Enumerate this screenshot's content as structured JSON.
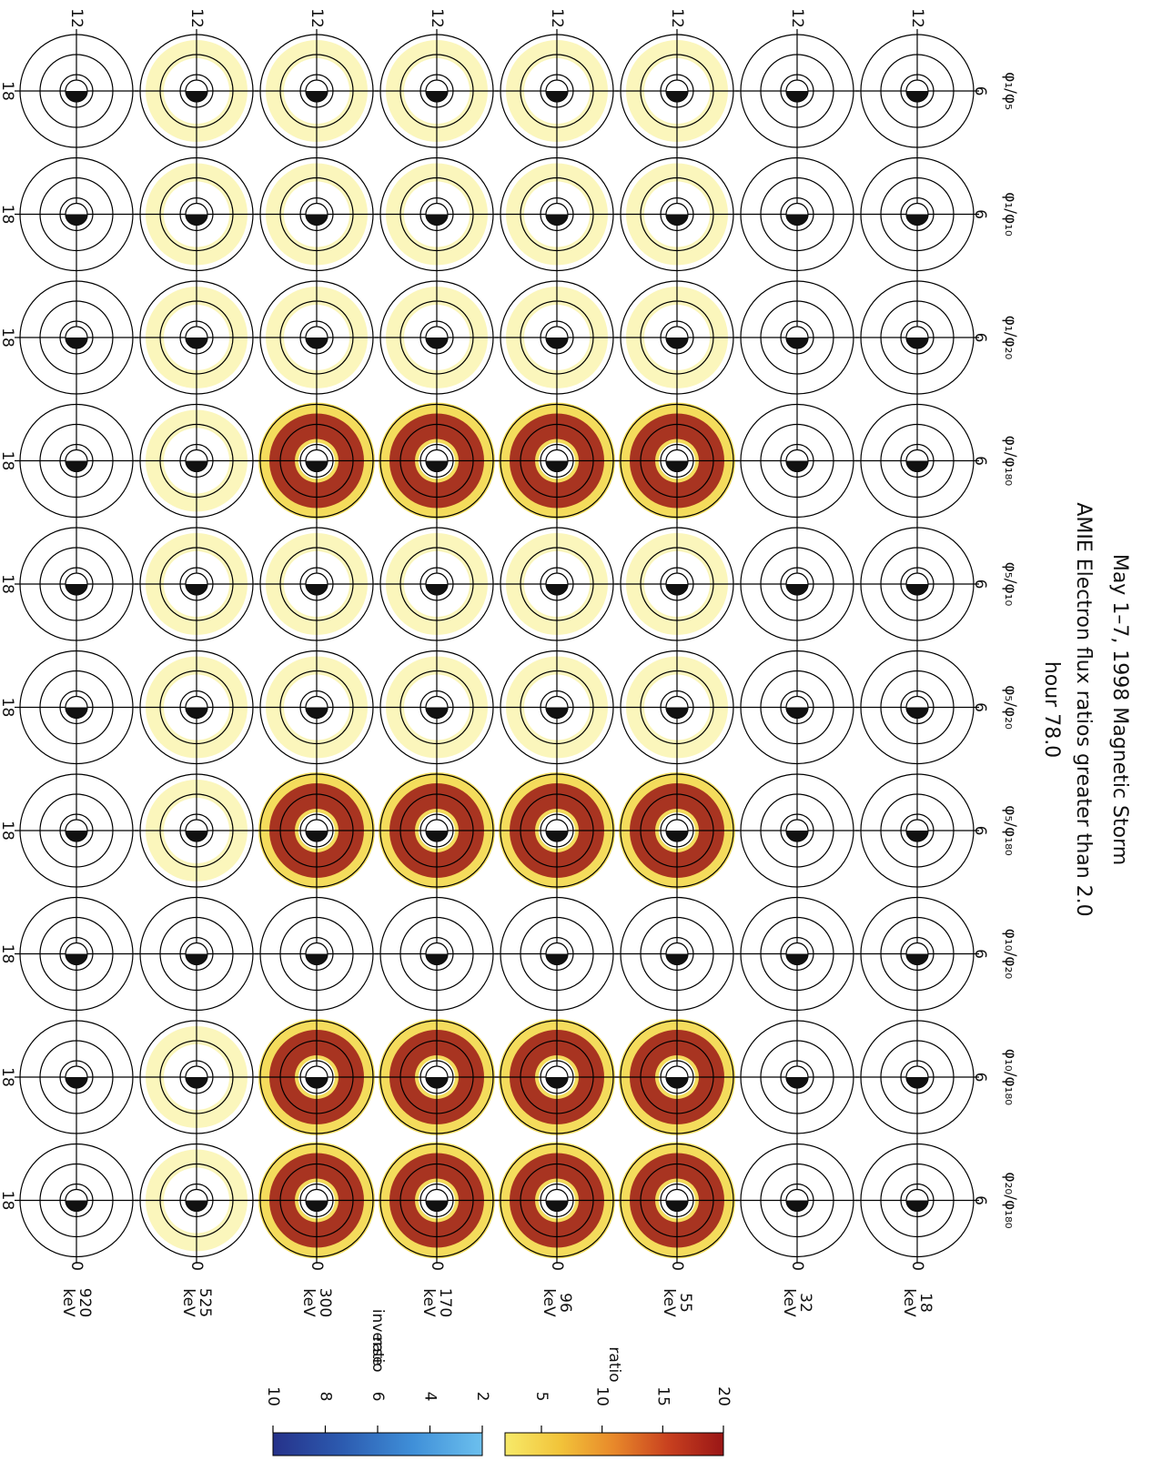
{
  "chart_data": {
    "type": "polar-grid",
    "title": "May 1–7, 1998 Magnetic Storm",
    "subtitle": "AMIE Electron flux ratios greater than 2.0",
    "subtitle2": "hour 78.0",
    "ratios": [
      "φ₁/φ₅",
      "φ₁/φ₁₀",
      "φ₁/φ₂₀",
      "φ₁/φ₁₈₀",
      "φ₅/φ₁₀",
      "φ₅/φ₂₀",
      "φ₅/φ₁₈₀",
      "φ₁₀/φ₂₀",
      "φ₁₀/φ₁₈₀",
      "φ₂₀/φ₁₈₀"
    ],
    "energies": [
      "18",
      "32",
      "55",
      "96",
      "170",
      "300",
      "525",
      "920"
    ],
    "energy_unit": "keV",
    "mlt_labels": {
      "top": "6",
      "left": "12",
      "bottom": "18",
      "right": "0"
    },
    "colorbars": [
      {
        "label": "ratio",
        "ylim": [
          2,
          20
        ],
        "yticks": [
          5,
          10,
          15,
          20
        ],
        "colors": [
          "#f7ea6a",
          "#f2c43a",
          "#e8882a",
          "#c8401f",
          "#9a1616"
        ]
      },
      {
        "label": [
          "inverse",
          "ratio"
        ],
        "ylim": [
          2,
          10
        ],
        "yticks": [
          2,
          4,
          6,
          8,
          10
        ],
        "colors": [
          "#6cc0ee",
          "#3f8fd8",
          "#2c5bb0",
          "#26328a"
        ]
      }
    ]
  }
}
